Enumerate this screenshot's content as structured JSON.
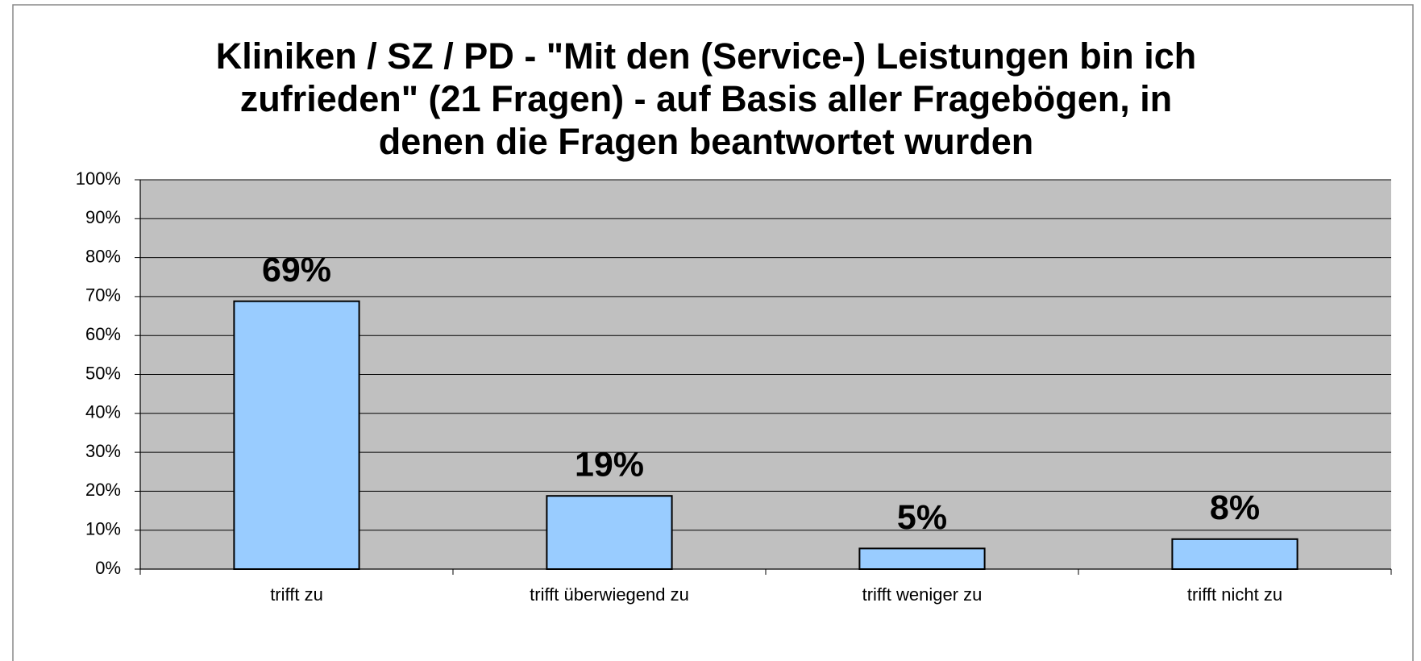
{
  "chart_data": {
    "type": "bar",
    "title": [
      "Kliniken / SZ / PD - \"Mit den (Service-) Leistungen bin ich",
      "zufrieden\" (21 Fragen) - auf Basis aller Fragebögen, in",
      "denen die Fragen beantwortet wurden"
    ],
    "categories": [
      "trifft zu",
      "trifft überwiegend zu",
      "trifft weniger zu",
      "trifft nicht zu"
    ],
    "values": [
      68.8,
      18.8,
      5.3,
      7.7
    ],
    "value_labels": [
      "69%",
      "19%",
      "5%",
      "8%"
    ],
    "color": "#99ccff",
    "ylim": [
      0,
      100
    ],
    "yticks": [
      {
        "value": 0,
        "label": "0%"
      },
      {
        "value": 10,
        "label": "10%"
      },
      {
        "value": 20,
        "label": "20%"
      },
      {
        "value": 30,
        "label": "30%"
      },
      {
        "value": 40,
        "label": "40%"
      },
      {
        "value": 50,
        "label": "50%"
      },
      {
        "value": 60,
        "label": "60%"
      },
      {
        "value": 70,
        "label": "70%"
      },
      {
        "value": 80,
        "label": "80%"
      },
      {
        "value": 90,
        "label": "90%"
      },
      {
        "value": 100,
        "label": "100%"
      }
    ],
    "grid": true
  }
}
